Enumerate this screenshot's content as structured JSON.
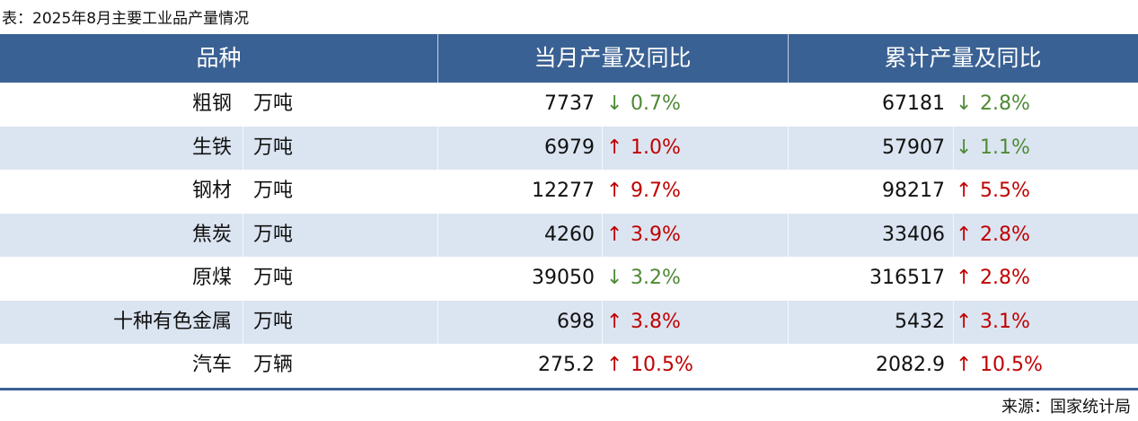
{
  "caption": "表：2025年8月主要工业品产量情况",
  "table": {
    "header": [
      "品种",
      "当月产量及同比",
      "累计产量及同比"
    ],
    "rows": [
      {
        "name": "粗钢",
        "unit": "万吨",
        "month": {
          "value": 7737,
          "arrow": "↓",
          "change": "0.7%",
          "color": "#4e8a35"
        },
        "total": {
          "value": 67181,
          "arrow": "↓",
          "change": "2.8%",
          "color": "#4e8a35"
        }
      },
      {
        "name": "生铁",
        "unit": "万吨",
        "month": {
          "value": 6979,
          "arrow": "↑",
          "change": "1.0%",
          "color": "#c00000"
        },
        "total": {
          "value": 57907,
          "arrow": "↓",
          "change": "1.1%",
          "color": "#4e8a35"
        }
      },
      {
        "name": "钢材",
        "unit": "万吨",
        "month": {
          "value": 12277,
          "arrow": "↑",
          "change": "9.7%",
          "color": "#c00000"
        },
        "total": {
          "value": 98217,
          "arrow": "↑",
          "change": "5.5%",
          "color": "#c00000"
        }
      },
      {
        "name": "焦炭",
        "unit": "万吨",
        "month": {
          "value": 4260,
          "arrow": "↑",
          "change": "3.9%",
          "color": "#c00000"
        },
        "total": {
          "value": 33406,
          "arrow": "↑",
          "change": "2.8%",
          "color": "#c00000"
        }
      },
      {
        "name": "原煤",
        "unit": "万吨",
        "month": {
          "value": 39050,
          "arrow": "↓",
          "change": "3.2%",
          "color": "#4e8a35"
        },
        "total": {
          "value": 316517,
          "arrow": "↑",
          "change": "2.8%",
          "color": "#c00000"
        }
      },
      {
        "name": "十种有色金属",
        "unit": "万吨",
        "month": {
          "value": 698,
          "arrow": "↑",
          "change": "3.8%",
          "color": "#c00000"
        },
        "total": {
          "value": 5432,
          "arrow": "↑",
          "change": "3.1%",
          "color": "#c00000"
        }
      },
      {
        "name": "汽车",
        "unit": "万辆",
        "month": {
          "value": 275.2,
          "arrow": "↑",
          "change": "10.5%",
          "color": "#c00000"
        },
        "total": {
          "value": 2082.9,
          "arrow": "↑",
          "change": "10.5%",
          "color": "#c00000"
        }
      }
    ]
  },
  "source": "来源：国家统计局"
}
